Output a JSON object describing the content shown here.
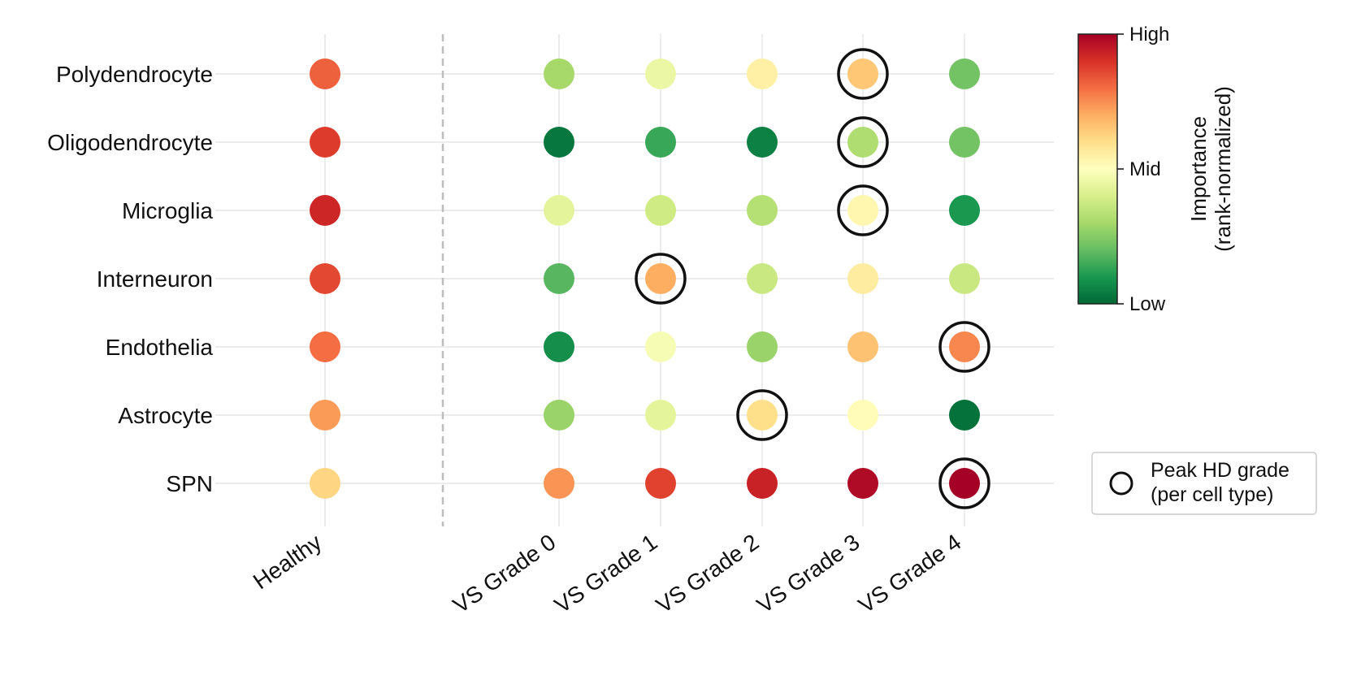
{
  "chart_data": {
    "type": "heatmap",
    "title": "",
    "rows": [
      "Polydendrocyte",
      "Oligodendrocyte",
      "Microglia",
      "Interneuron",
      "Endothelia",
      "Astrocyte",
      "SPN"
    ],
    "columns": [
      "Healthy",
      "VS Grade 0",
      "VS Grade 1",
      "VS Grade 2",
      "VS Grade 3",
      "VS Grade 4"
    ],
    "values": [
      [
        0.82,
        0.3,
        0.45,
        0.55,
        0.65,
        0.22
      ],
      [
        0.88,
        0.03,
        0.14,
        0.05,
        0.32,
        0.22
      ],
      [
        0.92,
        0.43,
        0.38,
        0.33,
        0.53,
        0.1
      ],
      [
        0.86,
        0.18,
        0.7,
        0.37,
        0.56,
        0.37
      ],
      [
        0.8,
        0.08,
        0.48,
        0.28,
        0.66,
        0.76
      ],
      [
        0.73,
        0.28,
        0.43,
        0.6,
        0.51,
        0.02
      ],
      [
        0.62,
        0.74,
        0.87,
        0.93,
        0.98,
        1.0
      ]
    ],
    "peak": [
      "VS Grade 3",
      "VS Grade 3",
      "VS Grade 3",
      "VS Grade 1",
      "VS Grade 4",
      "VS Grade 2",
      "VS Grade 4"
    ],
    "colorbar": {
      "label_line1": "Importance",
      "label_line2": "(rank-normalized)",
      "ticks": [
        "High",
        "Mid",
        "Low"
      ],
      "colormap": "RdYlGn_r",
      "colors": [
        "#a50026",
        "#d73027",
        "#f46d43",
        "#fdae61",
        "#fee08b",
        "#ffffbf",
        "#d9ef8b",
        "#a6d96a",
        "#66bd63",
        "#1a9850",
        "#006837"
      ]
    },
    "legend": {
      "line1": "Peak HD grade",
      "line2": "(per cell type)"
    },
    "grid": true,
    "separator_after_column": "Healthy"
  }
}
